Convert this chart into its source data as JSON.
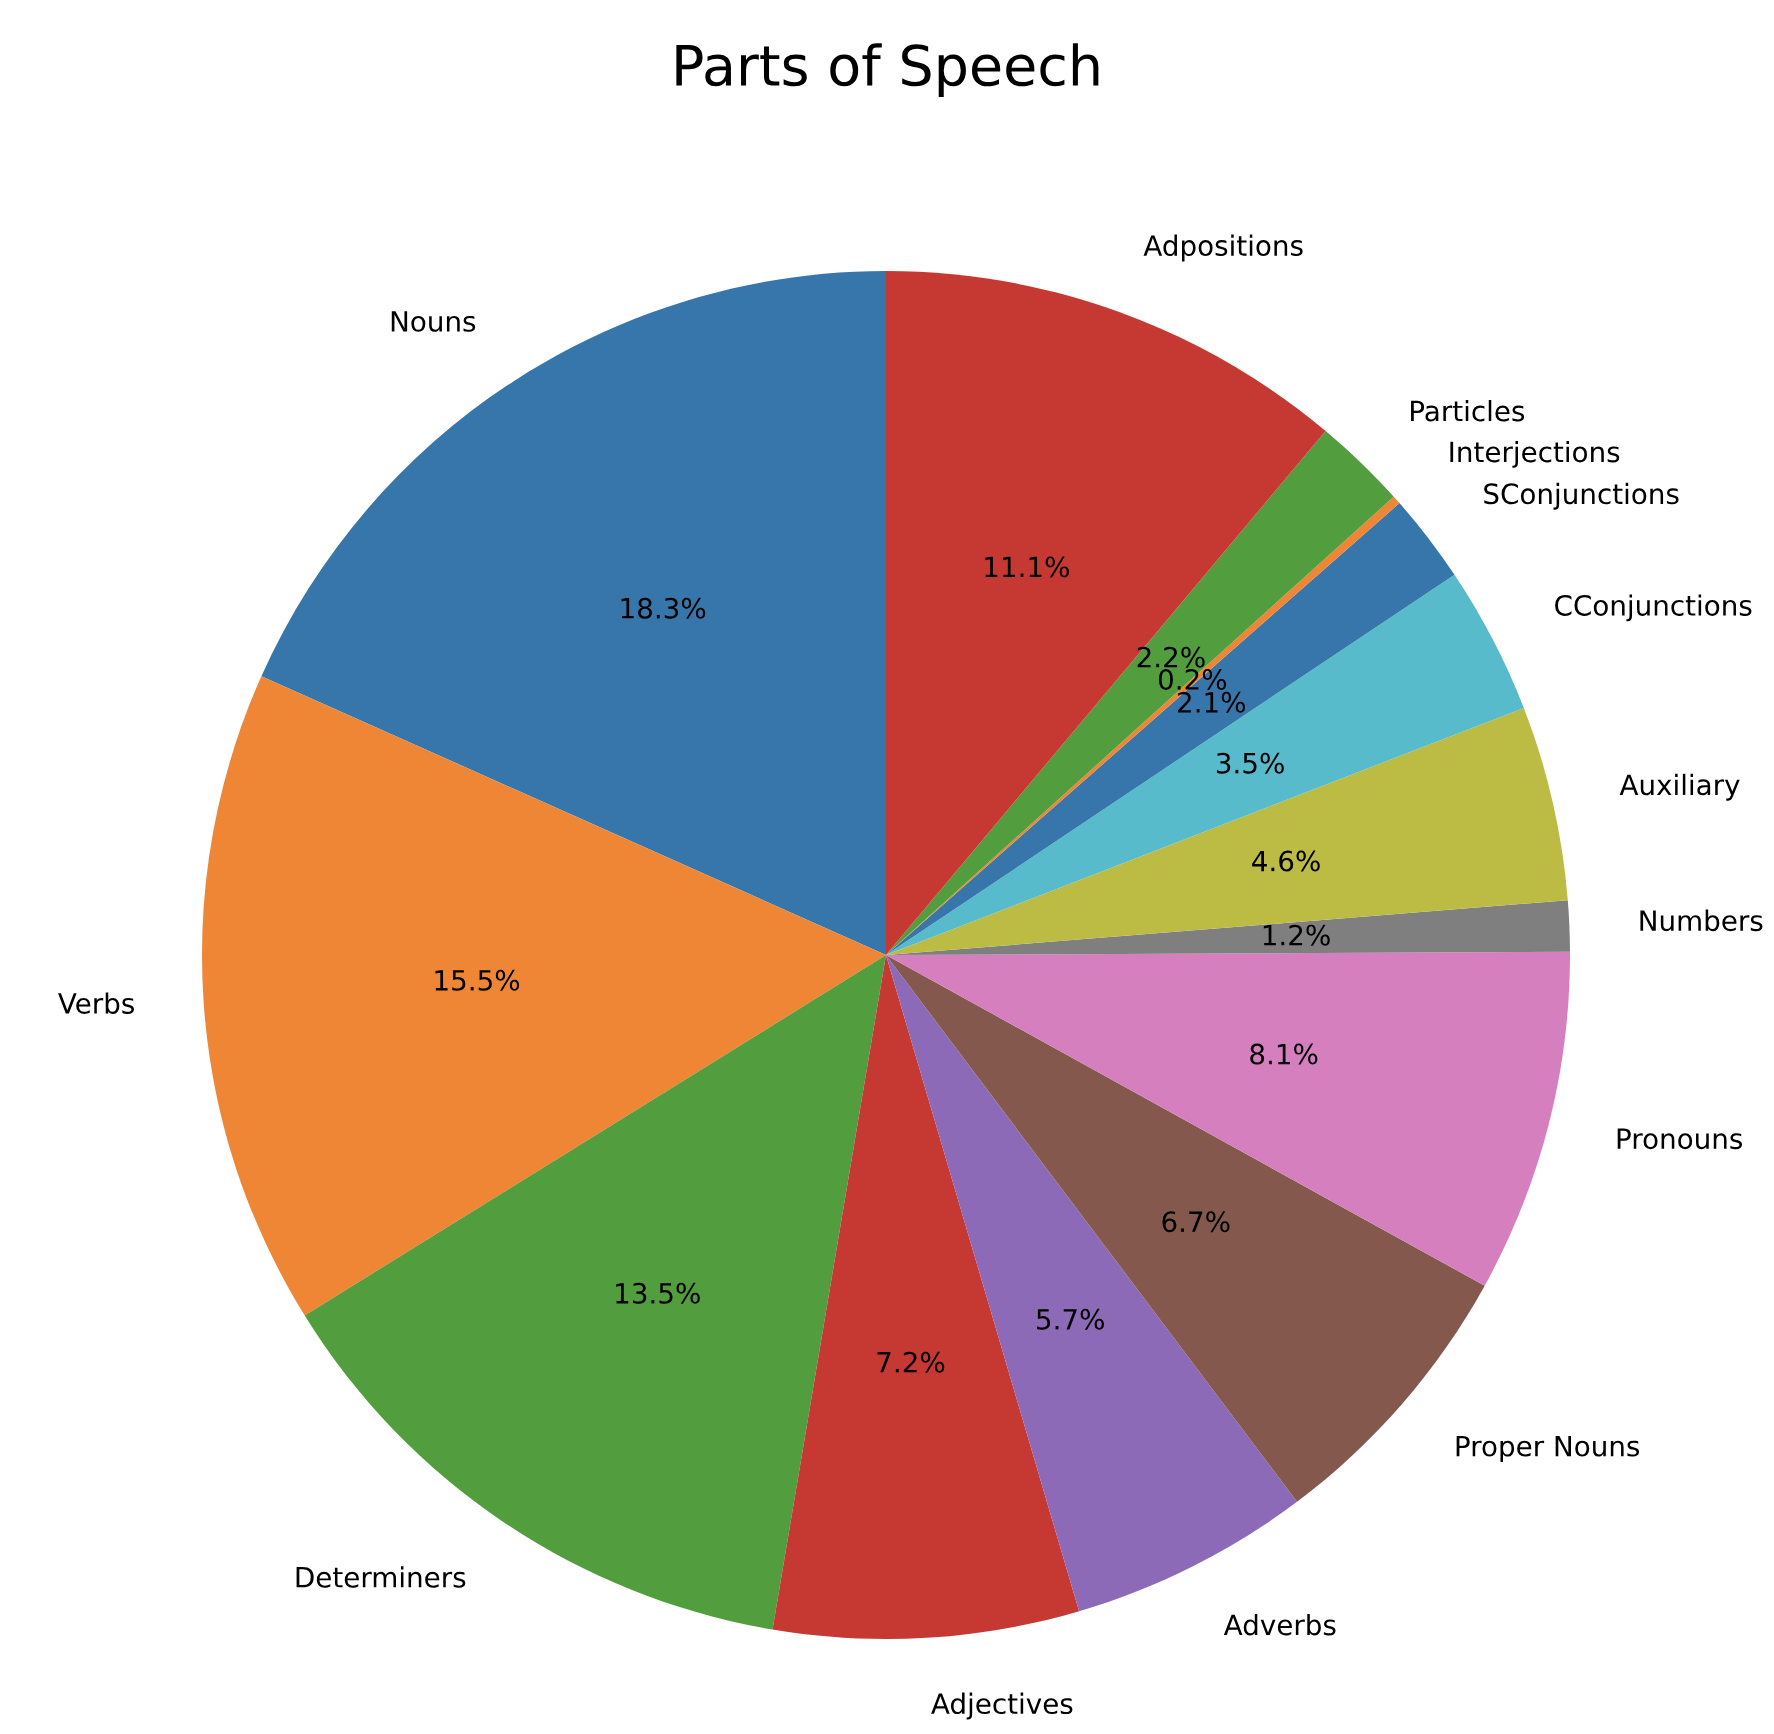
{
  "chart_data": {
    "type": "pie",
    "title": "Parts of Speech",
    "categories": [
      "Nouns",
      "Verbs",
      "Determiners",
      "Adjectives",
      "Adverbs",
      "Proper Nouns",
      "Pronouns",
      "Numbers",
      "Auxiliary",
      "CConjunctions",
      "SConjunctions",
      "Interjections",
      "Particles",
      "Adpositions"
    ],
    "values": [
      18.3,
      15.5,
      13.5,
      7.2,
      5.7,
      6.7,
      8.1,
      1.2,
      4.6,
      3.5,
      2.1,
      0.2,
      2.2,
      11.1
    ],
    "value_labels": [
      "18.3%",
      "15.5%",
      "13.5%",
      "7.2%",
      "5.7%",
      "6.7%",
      "8.1%",
      "1.2%",
      "4.6%",
      "3.5%",
      "2.1%",
      "0.2%",
      "2.2%",
      "11.1%"
    ],
    "colors": [
      "#3776ab",
      "#ee8636",
      "#529e3e",
      "#c53932",
      "#8d6ab8",
      "#85584e",
      "#d57fbe",
      "#7f7f7f",
      "#bcbc45",
      "#58bbcc",
      "#3776ab",
      "#ee8636",
      "#529e3e",
      "#c53932"
    ]
  }
}
